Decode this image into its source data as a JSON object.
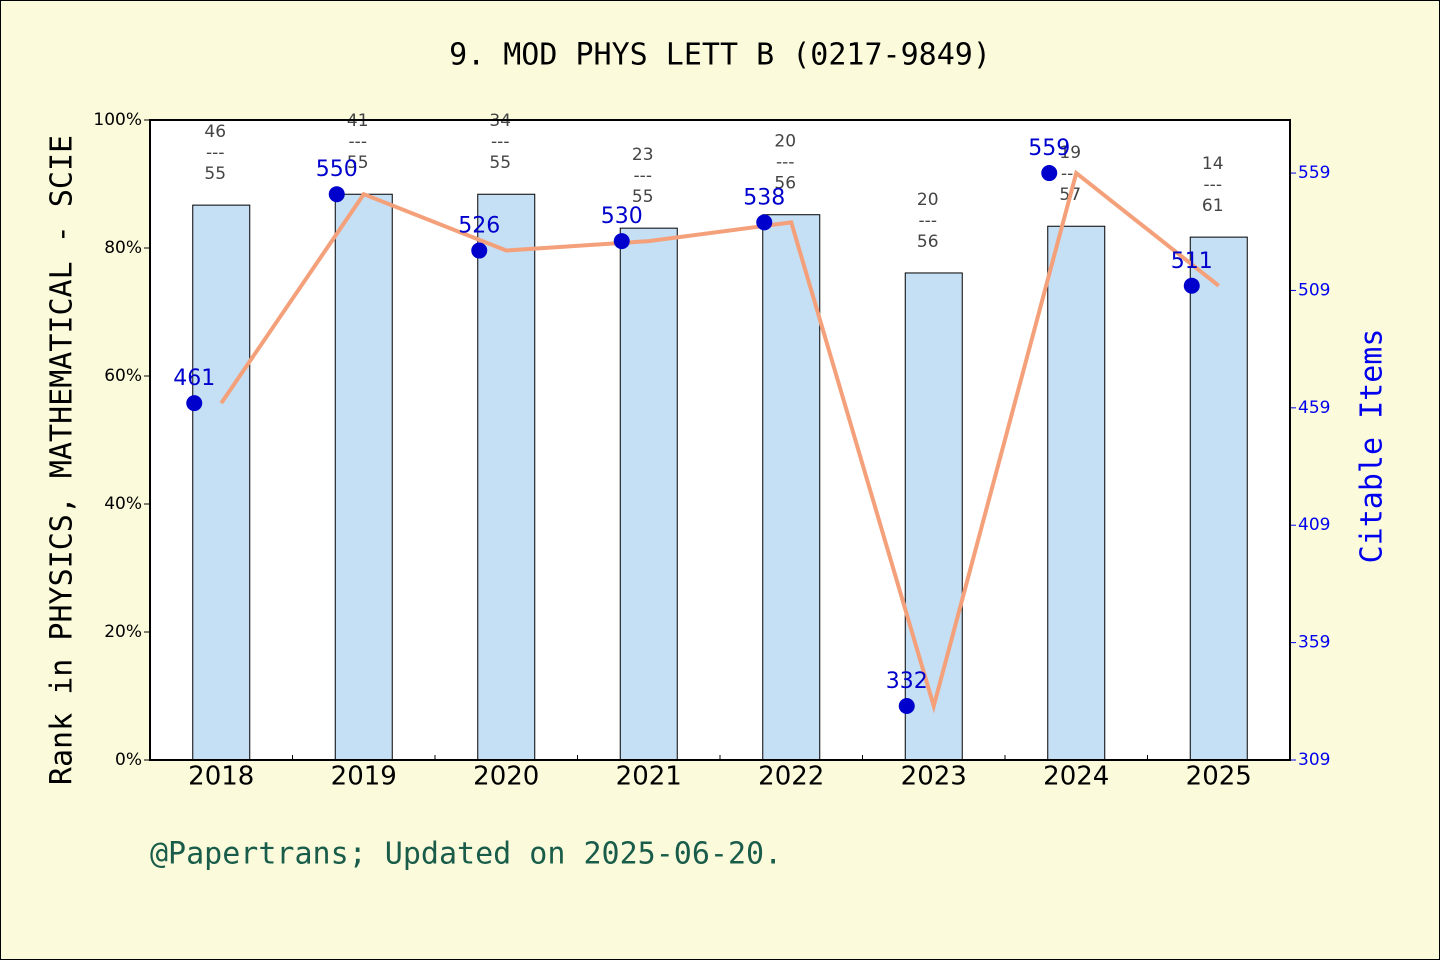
{
  "chart_data": {
    "type": "bar_line",
    "title": "9. MOD PHYS LETT B (0217-9849)",
    "y_label": "Rank in PHYSICS, MATHEMATICAL - SCIE",
    "y2_label": "Citable Items",
    "footer": "@Papertrans; Updated on 2025-06-20.",
    "categories": [
      "2018",
      "2019",
      "2020",
      "2021",
      "2022",
      "2023",
      "2024",
      "2025"
    ],
    "series": [
      {
        "name": "Rank",
        "color": "#c5dff5",
        "values": [
          86.7,
          88.4,
          88.4,
          83.1,
          85.2,
          76.1,
          83.4,
          81.7
        ]
      },
      {
        "name": "Citable Items",
        "color": "#f4a07a",
        "marker_color": "#0000cc",
        "axis": "y2",
        "values": [
          461,
          550,
          526,
          530,
          538,
          332,
          559,
          511
        ]
      }
    ],
    "ranks": [
      46,
      41,
      34,
      23,
      20,
      20,
      19,
      14
    ],
    "totals": [
      55,
      55,
      55,
      55,
      56,
      56,
      57,
      61
    ],
    "separator": "---",
    "ylim": [
      0,
      100
    ],
    "yticks": [
      {
        "value": 0,
        "label": "0%"
      },
      {
        "value": 20,
        "label": "20%"
      },
      {
        "value": 40,
        "label": "40%"
      },
      {
        "value": 60,
        "label": "60%"
      },
      {
        "value": 80,
        "label": "80%"
      },
      {
        "value": 100,
        "label": "100%"
      }
    ],
    "y2lim": [
      309,
      581.6
    ],
    "y2ticks": [
      309,
      359,
      409,
      459,
      509,
      559
    ]
  }
}
